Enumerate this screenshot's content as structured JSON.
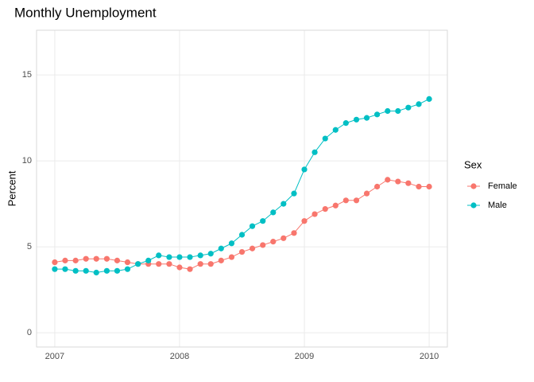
{
  "chart_data": {
    "type": "line",
    "title": "Monthly Unemployment",
    "y_label": "Percent",
    "legend_title": "Sex",
    "x": [
      2007,
      2007.083,
      2007.167,
      2007.25,
      2007.333,
      2007.417,
      2007.5,
      2007.583,
      2007.667,
      2007.75,
      2007.833,
      2007.917,
      2008,
      2008.083,
      2008.167,
      2008.25,
      2008.333,
      2008.417,
      2008.5,
      2008.583,
      2008.667,
      2008.75,
      2008.833,
      2008.917,
      2009,
      2009.083,
      2009.167,
      2009.25,
      2009.333,
      2009.417,
      2009.5,
      2009.583,
      2009.667,
      2009.75,
      2009.833,
      2009.917,
      2010
    ],
    "series": [
      {
        "name": "Female",
        "color": "#F8766D",
        "values": [
          4.1,
          4.2,
          4.2,
          4.3,
          4.3,
          4.3,
          4.2,
          4.1,
          4.0,
          4.0,
          4.0,
          4.0,
          3.8,
          3.7,
          4.0,
          4.0,
          4.2,
          4.4,
          4.7,
          4.9,
          5.1,
          5.3,
          5.5,
          5.8,
          6.5,
          6.9,
          7.2,
          7.4,
          7.7,
          7.7,
          8.1,
          8.5,
          8.9,
          8.8,
          8.7,
          8.5,
          8.5
        ]
      },
      {
        "name": "Male",
        "color": "#00BFC4",
        "values": [
          3.7,
          3.7,
          3.6,
          3.6,
          3.5,
          3.6,
          3.6,
          3.7,
          4.0,
          4.2,
          4.5,
          4.4,
          4.4,
          4.4,
          4.5,
          4.6,
          4.9,
          5.2,
          5.7,
          6.2,
          6.5,
          7.0,
          7.5,
          8.1,
          9.5,
          10.5,
          11.3,
          11.8,
          12.2,
          12.4,
          12.5,
          12.7,
          12.9,
          12.9,
          13.1,
          13.3,
          13.6
        ]
      }
    ],
    "xlim": [
      2006.854,
      2010.146
    ],
    "xticks": [
      2007,
      2008,
      2009,
      2010
    ],
    "ylim": [
      -0.83,
      17.6
    ],
    "yticks": [
      0,
      5,
      10,
      15
    ],
    "grid": true,
    "legend": "right"
  }
}
